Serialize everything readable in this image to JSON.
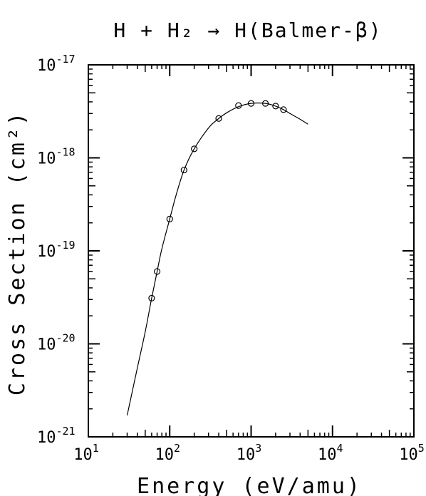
{
  "chart_data": {
    "type": "scatter",
    "title": "H + H₂ → H(Balmer-β)",
    "xlabel": "Energy (eV/amu)",
    "ylabel": "Cross Section (cm²)",
    "xscale": "log",
    "yscale": "log",
    "xlim": [
      10,
      100000
    ],
    "ylim": [
      1e-21,
      1e-17
    ],
    "x_ticks": [
      {
        "value": 10,
        "base": "10",
        "exp": "1"
      },
      {
        "value": 100,
        "base": "10",
        "exp": "2"
      },
      {
        "value": 1000,
        "base": "10",
        "exp": "3"
      },
      {
        "value": 10000,
        "base": "10",
        "exp": "4"
      },
      {
        "value": 100000,
        "base": "10",
        "exp": "5"
      }
    ],
    "y_ticks": [
      {
        "value": 1e-21,
        "base": "10",
        "exp": "-21"
      },
      {
        "value": 1e-20,
        "base": "10",
        "exp": "-20"
      },
      {
        "value": 1e-19,
        "base": "10",
        "exp": "-19"
      },
      {
        "value": 1e-18,
        "base": "10",
        "exp": "-18"
      },
      {
        "value": 1e-17,
        "base": "10",
        "exp": "-17"
      }
    ],
    "grid": false,
    "series": [
      {
        "kind": "points",
        "marker": "open-circle",
        "x": [
          60,
          70,
          100,
          150,
          200,
          400,
          700,
          1000,
          1500,
          2000,
          2500
        ],
        "y": [
          3.1e-20,
          6e-20,
          2.2e-19,
          7.4e-19,
          1.25e-18,
          2.65e-18,
          3.65e-18,
          3.85e-18,
          3.85e-18,
          3.6e-18,
          3.3e-18
        ]
      },
      {
        "kind": "curve",
        "x": [
          30,
          40,
          50,
          60,
          70,
          80,
          100,
          120,
          150,
          200,
          300,
          400,
          500,
          700,
          1000,
          1500,
          2000,
          2500,
          3000,
          4000,
          5000
        ],
        "y": [
          1.7e-21,
          5.5e-21,
          1.35e-20,
          3.1e-20,
          6e-20,
          1.05e-19,
          2.2e-19,
          4e-19,
          7.4e-19,
          1.25e-18,
          2.1e-18,
          2.65e-18,
          3.05e-18,
          3.55e-18,
          3.85e-18,
          3.85e-18,
          3.6e-18,
          3.3e-18,
          3e-18,
          2.6e-18,
          2.3e-18
        ]
      }
    ]
  }
}
